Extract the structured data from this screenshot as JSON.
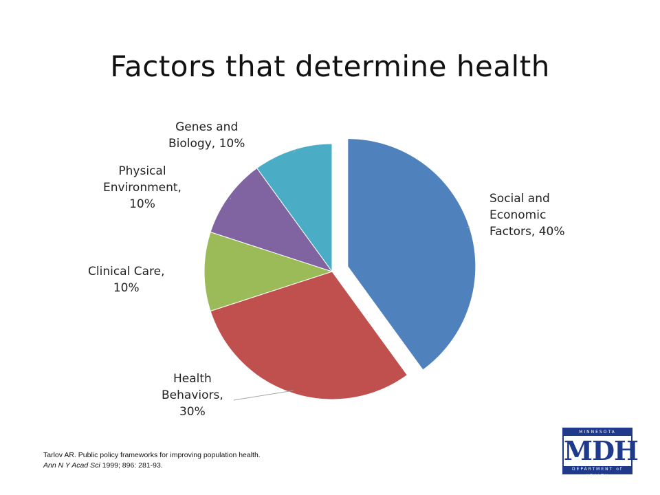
{
  "title": "Factors that determine health",
  "chart_data": {
    "type": "pie",
    "title": "Factors that determine health",
    "slices": [
      {
        "label": "Social and Economic Factors",
        "value": 40,
        "display": [
          "Social and",
          "Economic",
          "Factors, 40%"
        ],
        "color": "#4f81bd"
      },
      {
        "label": "Health Behaviors",
        "value": 30,
        "display": [
          "Health",
          "Behaviors,",
          "30%"
        ],
        "color": "#c0504d"
      },
      {
        "label": "Clinical Care",
        "value": 10,
        "display": [
          "Clinical Care,",
          "10%"
        ],
        "color": "#9bbb59"
      },
      {
        "label": "Physical Environment",
        "value": 10,
        "display": [
          "Physical",
          "Environment,",
          "10%"
        ],
        "color": "#8064a2"
      },
      {
        "label": "Genes and Biology",
        "value": 10,
        "display": [
          "Genes and",
          "Biology, 10%"
        ],
        "color": "#4bacc6"
      }
    ],
    "exploded": "Social and Economic Factors",
    "legend": "none"
  },
  "citation": {
    "line1": "Tarlov AR.   Public policy frameworks for improving population health.",
    "line2_italic": "Ann N Y Acad Sci",
    "line2_rest": " 1999; 896: 281-93."
  },
  "logo": {
    "top": "MINNESOTA",
    "main": "MDH",
    "bottom": "DEPARTMENT of HEALTH"
  }
}
